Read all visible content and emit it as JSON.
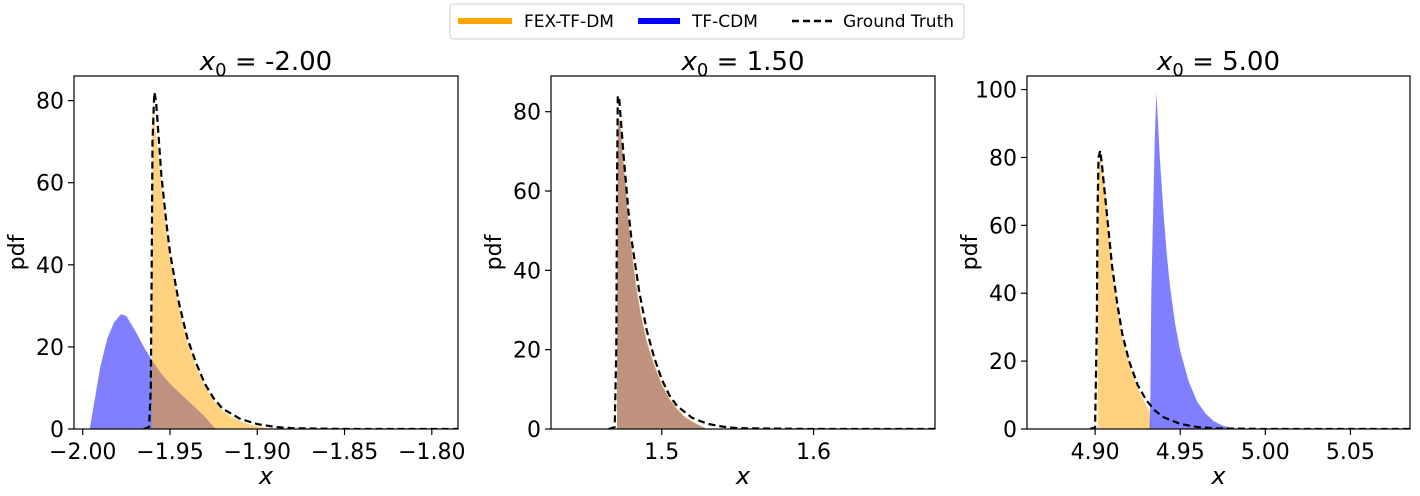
{
  "legend": {
    "placement": "top-center",
    "entries": [
      {
        "label": "FEX-TF-DM",
        "color": "#FFA500",
        "style": "solid-thick"
      },
      {
        "label": "TF-CDM",
        "color": "#0000FF",
        "style": "solid-thick"
      },
      {
        "label": "Ground Truth",
        "color": "#000000",
        "style": "dashed"
      }
    ]
  },
  "chart_data": [
    {
      "type": "area",
      "title": "x₀ = -2.00",
      "title_main": "x",
      "title_sub": "0",
      "title_rest": " = -2.00",
      "xlabel": "x",
      "ylabel": "pdf",
      "xlim": [
        -2.005,
        -1.785
      ],
      "ylim": [
        0,
        86
      ],
      "xticks": [
        -2.0,
        -1.95,
        -1.9,
        -1.85,
        -1.8
      ],
      "xtick_labels": [
        "−2.00",
        "−1.95",
        "−1.90",
        "−1.85",
        "−1.80"
      ],
      "yticks": [
        0,
        20,
        40,
        60,
        80
      ],
      "ytick_labels": [
        "0",
        "20",
        "40",
        "60",
        "80"
      ],
      "grid": false,
      "series": [
        {
          "name": "TF-CDM",
          "color": "#0000FF",
          "x": [
            -1.996,
            -1.994,
            -1.99,
            -1.986,
            -1.982,
            -1.978,
            -1.975,
            -1.97,
            -1.965,
            -1.96,
            -1.955,
            -1.95,
            -1.945,
            -1.94,
            -1.935,
            -1.93,
            -1.927,
            -1.925,
            -1.923
          ],
          "y": [
            0,
            5,
            15,
            22,
            26,
            28,
            27.5,
            24,
            20,
            16.5,
            13.5,
            11,
            9,
            7,
            5,
            3,
            1.5,
            0.5,
            0
          ]
        },
        {
          "name": "FEX-TF-DM",
          "color": "#FFA500",
          "x": [
            -1.9605,
            -1.96,
            -1.959,
            -1.958,
            -1.957,
            -1.955,
            -1.953,
            -1.95,
            -1.945,
            -1.94,
            -1.935,
            -1.93,
            -1.925,
            -1.92,
            -1.915,
            -1.91,
            -1.905,
            -1.9,
            -1.895,
            -1.89
          ],
          "y": [
            0,
            78,
            76,
            72,
            68,
            60,
            52,
            42,
            30,
            21,
            15,
            10.5,
            7,
            4.5,
            3,
            2,
            1.2,
            0.7,
            0.3,
            0
          ]
        },
        {
          "name": "Ground Truth",
          "color": "#000000",
          "x": [
            -1.965,
            -1.962,
            -1.961,
            -1.9605,
            -1.96,
            -1.959,
            -1.958,
            -1.957,
            -1.955,
            -1.952,
            -1.95,
            -1.945,
            -1.94,
            -1.935,
            -1.93,
            -1.925,
            -1.92,
            -1.91,
            -1.9,
            -1.89,
            -1.88,
            -1.85,
            -1.8,
            -1.785
          ],
          "y": [
            0,
            0.5,
            10,
            40,
            70,
            82,
            80,
            74,
            62,
            50,
            43,
            31,
            22,
            16,
            11,
            7.5,
            5,
            2.5,
            1.2,
            0.5,
            0.2,
            0,
            0,
            0
          ]
        }
      ]
    },
    {
      "type": "area",
      "title": "x₀ = 1.50",
      "title_main": "x",
      "title_sub": "0",
      "title_rest": " = 1.50",
      "xlabel": "x",
      "ylabel": "pdf",
      "xlim": [
        1.427,
        1.68
      ],
      "ylim": [
        0,
        89
      ],
      "xticks": [
        1.5,
        1.6
      ],
      "xtick_labels": [
        "1.5",
        "1.6"
      ],
      "yticks": [
        0,
        20,
        40,
        60,
        80
      ],
      "ytick_labels": [
        "0",
        "20",
        "40",
        "60",
        "80"
      ],
      "grid": false,
      "series": [
        {
          "name": "TF-CDM",
          "color": "#0000FF",
          "x": [
            1.4705,
            1.471,
            1.472,
            1.473,
            1.474,
            1.476,
            1.478,
            1.48,
            1.483,
            1.486,
            1.49,
            1.495,
            1.5,
            1.505,
            1.51,
            1.515,
            1.52,
            1.525,
            1.53
          ],
          "y": [
            0,
            76,
            78,
            75,
            70,
            62,
            52,
            45,
            36,
            29,
            22,
            16,
            11,
            7.5,
            5,
            3,
            1.8,
            0.8,
            0
          ]
        },
        {
          "name": "FEX-TF-DM",
          "color": "#FFA500",
          "x": [
            1.4705,
            1.471,
            1.472,
            1.473,
            1.474,
            1.476,
            1.478,
            1.48,
            1.483,
            1.486,
            1.49,
            1.495,
            1.5,
            1.505,
            1.51,
            1.515,
            1.52,
            1.525,
            1.53
          ],
          "y": [
            0,
            75,
            79,
            76,
            71,
            63,
            53,
            46,
            37,
            30,
            22.5,
            16.5,
            11.5,
            7.8,
            5.2,
            3.2,
            2,
            0.9,
            0
          ]
        },
        {
          "name": "Ground Truth",
          "color": "#000000",
          "x": [
            1.465,
            1.469,
            1.47,
            1.4705,
            1.471,
            1.472,
            1.473,
            1.475,
            1.478,
            1.48,
            1.485,
            1.49,
            1.495,
            1.5,
            1.505,
            1.51,
            1.52,
            1.53,
            1.54,
            1.55,
            1.6,
            1.68
          ],
          "y": [
            0,
            0.5,
            20,
            60,
            84,
            83,
            78,
            68,
            55,
            48,
            35,
            25,
            18,
            12.5,
            8.5,
            5.8,
            2.8,
            1.3,
            0.6,
            0.2,
            0,
            0
          ]
        }
      ]
    },
    {
      "type": "area",
      "title": "x₀ = 5.00",
      "title_main": "x",
      "title_sub": "0",
      "title_rest": " = 5.00",
      "xlabel": "x",
      "ylabel": "pdf",
      "xlim": [
        4.86,
        5.085
      ],
      "ylim": [
        0,
        104
      ],
      "xticks": [
        4.9,
        4.95,
        5.0,
        5.05
      ],
      "xtick_labels": [
        "4.90",
        "4.95",
        "5.00",
        "5.05"
      ],
      "yticks": [
        0,
        20,
        40,
        60,
        80,
        100
      ],
      "ytick_labels": [
        "0",
        "20",
        "40",
        "60",
        "80",
        "100"
      ],
      "grid": false,
      "series": [
        {
          "name": "FEX-TF-DM",
          "color": "#FFA500",
          "x": [
            4.9015,
            4.902,
            4.903,
            4.904,
            4.906,
            4.908,
            4.91,
            4.913,
            4.916,
            4.92,
            4.925,
            4.93,
            4.932,
            4.933
          ],
          "y": [
            0,
            76,
            80,
            78,
            70,
            58,
            48,
            36,
            27,
            19,
            12,
            7,
            5.5,
            0
          ]
        },
        {
          "name": "TF-CDM",
          "color": "#0000FF",
          "x": [
            4.932,
            4.9325,
            4.933,
            4.934,
            4.935,
            4.936,
            4.937,
            4.938,
            4.94,
            4.942,
            4.944,
            4.947,
            4.95,
            4.955,
            4.96,
            4.965,
            4.97,
            4.975,
            4.98,
            4.985
          ],
          "y": [
            0,
            10,
            40,
            62,
            85,
            99,
            90,
            80,
            65,
            52,
            42,
            31,
            23,
            14,
            8,
            4.5,
            2.2,
            1,
            0.3,
            0
          ]
        },
        {
          "name": "Ground Truth",
          "color": "#000000",
          "x": [
            4.897,
            4.9,
            4.901,
            4.9015,
            4.902,
            4.903,
            4.904,
            4.906,
            4.908,
            4.91,
            4.913,
            4.916,
            4.92,
            4.925,
            4.93,
            4.935,
            4.94,
            4.95,
            4.96,
            4.97,
            5.0,
            5.085
          ],
          "y": [
            0,
            0.5,
            30,
            65,
            80,
            82,
            78,
            68,
            58,
            48,
            37,
            28,
            20,
            13,
            8.5,
            5.5,
            3.5,
            1.5,
            0.6,
            0.2,
            0,
            0
          ]
        }
      ]
    }
  ]
}
